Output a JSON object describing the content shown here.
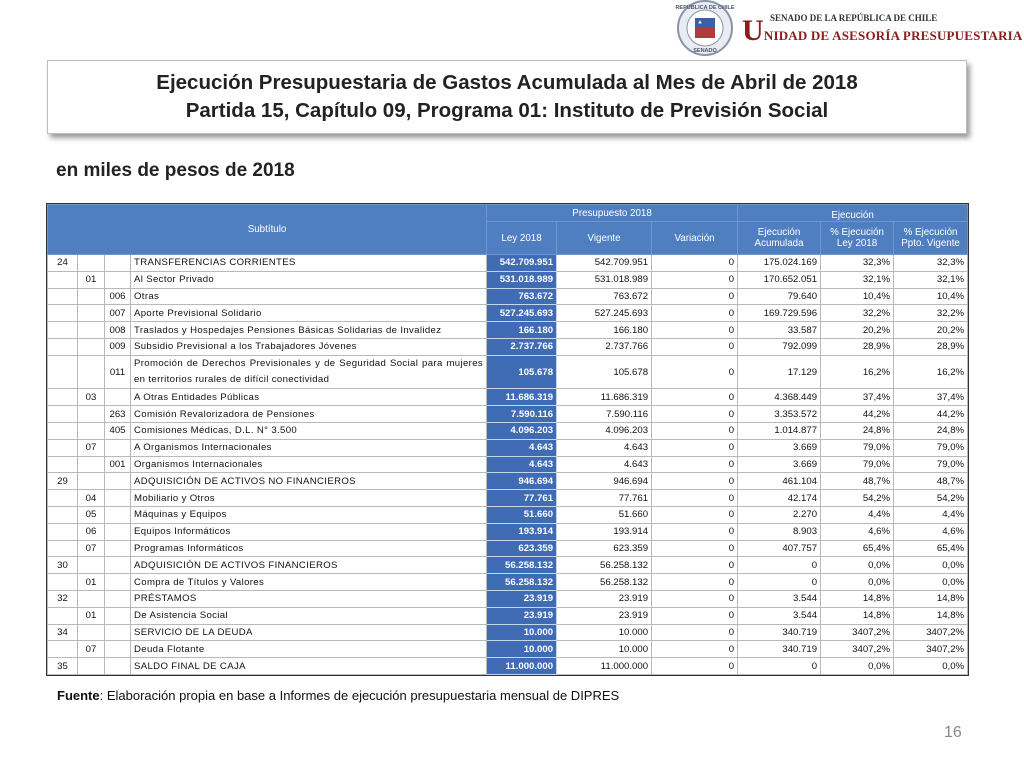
{
  "logo": {
    "seal_top": "REPÚBLICA DE CHILE",
    "seal_bottom": "SENADO",
    "line1": "SENADO DE LA REPÚBLICA DE CHILE",
    "line2": "UNIDAD DE ASESORÍA PRESUPUESTARIA"
  },
  "header": {
    "title_line1": "Ejecución Presupuestaria de Gastos Acumulada al Mes de Abril de 2018",
    "title_line2": "Partida 15, Capítulo 09, Programa 01: Instituto de Previsión Social"
  },
  "subtitle": "en miles de pesos de 2018",
  "table": {
    "header": {
      "subtitulo": "Subtítulo",
      "presupuesto": "Presupuesto 2018",
      "ley": "Ley 2018",
      "vigente": "Vigente",
      "variacion": "Variación",
      "ejecucion": "Ejecución",
      "ejecucion_acumulada": [
        "Ejecución",
        "Acumulada"
      ],
      "pct_ley": [
        "% Ejecución",
        "Ley 2018"
      ],
      "pct_vigente": [
        "% Ejecución",
        "Ppto. Vigente"
      ]
    },
    "rows": [
      [
        "24",
        null,
        null,
        "TRANSFERENCIAS CORRIENTES",
        "542.709.951",
        "542.709.951",
        "0",
        "175.024.169",
        "32,3%",
        "32,3%"
      ],
      [
        null,
        "01",
        null,
        "Al Sector Privado",
        "531.018.989",
        "531.018.989",
        "0",
        "170.652.051",
        "32,1%",
        "32,1%"
      ],
      [
        null,
        null,
        "006",
        "Otras",
        "763.672",
        "763.672",
        "0",
        "79.640",
        "10,4%",
        "10,4%"
      ],
      [
        null,
        null,
        "007",
        "Aporte Previsional Solidario",
        "527.245.693",
        "527.245.693",
        "0",
        "169.729.596",
        "32,2%",
        "32,2%"
      ],
      [
        null,
        null,
        "008",
        "Traslados y Hospedajes Pensiones Básicas Solidarias de Invalidez",
        "166.180",
        "166.180",
        "0",
        "33.587",
        "20,2%",
        "20,2%"
      ],
      [
        null,
        null,
        "009",
        "Subsidio Previsional a los Trabajadores Jóvenes",
        "2.737.766",
        "2.737.766",
        "0",
        "792.099",
        "28,9%",
        "28,9%"
      ],
      [
        null,
        null,
        "011",
        "Promoción de Derechos Previsionales y de Seguridad Social para mujeres en territorios rurales de difícil conectividad",
        "105.678",
        "105.678",
        "0",
        "17.129",
        "16,2%",
        "16,2%"
      ],
      [
        null,
        "03",
        null,
        "A Otras Entidades Públicas",
        "11.686.319",
        "11.686.319",
        "0",
        "4.368.449",
        "37,4%",
        "37,4%"
      ],
      [
        null,
        null,
        "263",
        "Comisión Revalorizadora de Pensiones",
        "7.590.116",
        "7.590.116",
        "0",
        "3.353.572",
        "44,2%",
        "44,2%"
      ],
      [
        null,
        null,
        "405",
        "Comisiones Médicas, D.L. N° 3.500",
        "4.096.203",
        "4.096.203",
        "0",
        "1.014.877",
        "24,8%",
        "24,8%"
      ],
      [
        null,
        "07",
        null,
        "A Organismos Internacionales",
        "4.643",
        "4.643",
        "0",
        "3.669",
        "79,0%",
        "79,0%"
      ],
      [
        null,
        null,
        "001",
        "Organismos Internacionales",
        "4.643",
        "4.643",
        "0",
        "3.669",
        "79,0%",
        "79,0%"
      ],
      [
        "29",
        null,
        null,
        "ADQUISICIÓN DE ACTIVOS NO FINANCIEROS",
        "946.694",
        "946.694",
        "0",
        "461.104",
        "48,7%",
        "48,7%"
      ],
      [
        null,
        "04",
        null,
        "Mobiliario y Otros",
        "77.761",
        "77.761",
        "0",
        "42.174",
        "54,2%",
        "54,2%"
      ],
      [
        null,
        "05",
        null,
        "Máquinas y Equipos",
        "51.660",
        "51.660",
        "0",
        "2.270",
        "4,4%",
        "4,4%"
      ],
      [
        null,
        "06",
        null,
        "Equipos Informáticos",
        "193.914",
        "193.914",
        "0",
        "8.903",
        "4,6%",
        "4,6%"
      ],
      [
        null,
        "07",
        null,
        "Programas Informáticos",
        "623.359",
        "623.359",
        "0",
        "407.757",
        "65,4%",
        "65,4%"
      ],
      [
        "30",
        null,
        null,
        "ADQUISICIÓN DE ACTIVOS FINANCIEROS",
        "56.258.132",
        "56.258.132",
        "0",
        "0",
        "0,0%",
        "0,0%"
      ],
      [
        null,
        "01",
        null,
        "Compra de Títulos y Valores",
        "56.258.132",
        "56.258.132",
        "0",
        "0",
        "0,0%",
        "0,0%"
      ],
      [
        "32",
        null,
        null,
        "PRÉSTAMOS",
        "23.919",
        "23.919",
        "0",
        "3.544",
        "14,8%",
        "14,8%"
      ],
      [
        null,
        "01",
        null,
        "De Asistencia Social",
        "23.919",
        "23.919",
        "0",
        "3.544",
        "14,8%",
        "14,8%"
      ],
      [
        "34",
        null,
        null,
        "SERVICIO DE LA DEUDA",
        "10.000",
        "10.000",
        "0",
        "340.719",
        "3407,2%",
        "3407,2%"
      ],
      [
        null,
        "07",
        null,
        "Deuda Flotante",
        "10.000",
        "10.000",
        "0",
        "340.719",
        "3407,2%",
        "3407,2%"
      ],
      [
        "35",
        null,
        null,
        "SALDO FINAL DE CAJA",
        "11.000.000",
        "11.000.000",
        "0",
        "0",
        "0,0%",
        "0,0%"
      ]
    ]
  },
  "footer": {
    "label": "Fuente",
    "text": ": Elaboración propia en base  a Informes de ejecución presupuestaria mensual de DIPRES"
  },
  "page_number": "16"
}
